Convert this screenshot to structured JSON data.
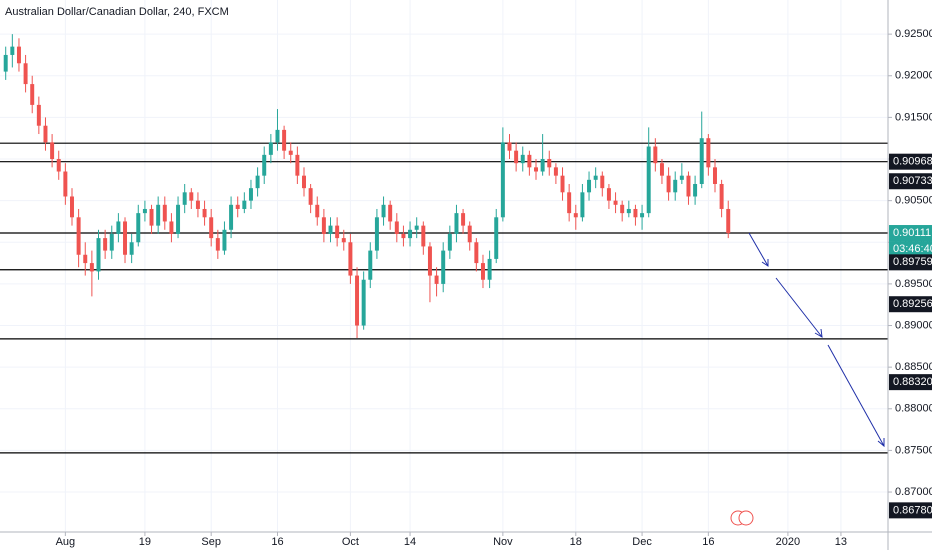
{
  "chart_data": {
    "type": "candlestick",
    "title": "Australian Dollar/Canadian Dollar, 240, FXCM",
    "up_color": "#26a69a",
    "down_color": "#ef5350",
    "xlim": [
      -0.86,
      133.1
    ],
    "xticks": [
      {
        "value": 9,
        "label": "Aug"
      },
      {
        "value": 21,
        "label": "19"
      },
      {
        "value": 31,
        "label": "Sep"
      },
      {
        "value": 41,
        "label": "16"
      },
      {
        "value": 52,
        "label": "Oct"
      },
      {
        "value": 61,
        "label": "14"
      },
      {
        "value": 75,
        "label": "Nov"
      },
      {
        "value": 86,
        "label": "18"
      },
      {
        "value": 96,
        "label": "Dec"
      },
      {
        "value": 106,
        "label": "16"
      },
      {
        "value": 118,
        "label": "2020"
      },
      {
        "value": 126,
        "label": "13"
      }
    ],
    "ylim": [
      0.8652,
      0.9291
    ],
    "yticks": [
      {
        "value": 0.925,
        "label": "0.92500"
      },
      {
        "value": 0.92,
        "label": "0.92000"
      },
      {
        "value": 0.915,
        "label": "0.91500"
      },
      {
        "value": 0.91,
        "label": "0.91000"
      },
      {
        "value": 0.905,
        "label": "0.90500"
      },
      {
        "value": 0.9,
        "label": "0.90000"
      },
      {
        "value": 0.895,
        "label": "0.89500"
      },
      {
        "value": 0.89,
        "label": "0.89000"
      },
      {
        "value": 0.885,
        "label": "0.88500"
      },
      {
        "value": 0.88,
        "label": "0.88000"
      },
      {
        "value": 0.875,
        "label": "0.87500"
      },
      {
        "value": 0.87,
        "label": "0.87000"
      }
    ],
    "grid": true,
    "levels": [
      0.9119,
      0.90968,
      0.90111,
      0.8967,
      0.8884,
      0.8747
    ],
    "price_labels": [
      {
        "value": 0.90968,
        "label": "0.90968"
      },
      {
        "value": 0.90733,
        "label": "0.90733"
      },
      {
        "value": 0.90111,
        "label": "0.90111"
      },
      {
        "value": 0.89759,
        "label": "0.89759"
      },
      {
        "value": 0.89256,
        "label": "0.89256"
      },
      {
        "value": 0.8832,
        "label": "0.88320"
      },
      {
        "value": 0.8678,
        "label": "0.86780"
      }
    ],
    "last_price_color": "#26a69a",
    "countdown": "03:46:40",
    "ohlc": [
      [
        0.9205,
        0.9235,
        0.9195,
        0.9225
      ],
      [
        0.9225,
        0.925,
        0.921,
        0.9235
      ],
      [
        0.9235,
        0.9245,
        0.9205,
        0.9215
      ],
      [
        0.9215,
        0.9225,
        0.918,
        0.919
      ],
      [
        0.919,
        0.92,
        0.9155,
        0.9165
      ],
      [
        0.9165,
        0.9175,
        0.913,
        0.914
      ],
      [
        0.914,
        0.915,
        0.911,
        0.912
      ],
      [
        0.912,
        0.913,
        0.909,
        0.91
      ],
      [
        0.91,
        0.911,
        0.9075,
        0.9085
      ],
      [
        0.9085,
        0.9095,
        0.9045,
        0.9055
      ],
      [
        0.9055,
        0.9065,
        0.902,
        0.903
      ],
      [
        0.903,
        0.904,
        0.897,
        0.8985
      ],
      [
        0.8985,
        0.9,
        0.896,
        0.8975
      ],
      [
        0.8975,
        0.899,
        0.8935,
        0.8965
      ],
      [
        0.8965,
        0.9015,
        0.8955,
        0.9005
      ],
      [
        0.9005,
        0.9015,
        0.898,
        0.899
      ],
      [
        0.899,
        0.902,
        0.898,
        0.901
      ],
      [
        0.901,
        0.9035,
        0.9,
        0.9025
      ],
      [
        0.9025,
        0.903,
        0.8975,
        0.8985
      ],
      [
        0.8985,
        0.901,
        0.8975,
        0.9
      ],
      [
        0.9,
        0.9045,
        0.8995,
        0.9035
      ],
      [
        0.9035,
        0.905,
        0.9025,
        0.904
      ],
      [
        0.904,
        0.9045,
        0.901,
        0.902
      ],
      [
        0.902,
        0.9055,
        0.901,
        0.9045
      ],
      [
        0.9045,
        0.9055,
        0.9015,
        0.9025
      ],
      [
        0.9025,
        0.9035,
        0.9,
        0.901
      ],
      [
        0.901,
        0.9055,
        0.9005,
        0.9045
      ],
      [
        0.9045,
        0.907,
        0.9035,
        0.906
      ],
      [
        0.906,
        0.9065,
        0.904,
        0.905
      ],
      [
        0.905,
        0.906,
        0.903,
        0.904
      ],
      [
        0.904,
        0.905,
        0.902,
        0.903
      ],
      [
        0.903,
        0.904,
        0.8995,
        0.9005
      ],
      [
        0.9005,
        0.9015,
        0.898,
        0.899
      ],
      [
        0.899,
        0.9025,
        0.8985,
        0.9015
      ],
      [
        0.9015,
        0.9055,
        0.9005,
        0.9045
      ],
      [
        0.9045,
        0.9055,
        0.903,
        0.904
      ],
      [
        0.904,
        0.906,
        0.9035,
        0.905
      ],
      [
        0.905,
        0.9075,
        0.904,
        0.9065
      ],
      [
        0.9065,
        0.909,
        0.9055,
        0.908
      ],
      [
        0.908,
        0.9115,
        0.907,
        0.9105
      ],
      [
        0.9105,
        0.913,
        0.9095,
        0.912
      ],
      [
        0.912,
        0.916,
        0.911,
        0.9135
      ],
      [
        0.9135,
        0.914,
        0.91,
        0.911
      ],
      [
        0.911,
        0.912,
        0.9095,
        0.9105
      ],
      [
        0.9105,
        0.9115,
        0.907,
        0.908
      ],
      [
        0.908,
        0.909,
        0.9055,
        0.9065
      ],
      [
        0.9065,
        0.907,
        0.9035,
        0.9045
      ],
      [
        0.9045,
        0.9055,
        0.902,
        0.903
      ],
      [
        0.903,
        0.904,
        0.9,
        0.901
      ],
      [
        0.901,
        0.903,
        0.9,
        0.902
      ],
      [
        0.902,
        0.903,
        0.8995,
        0.9005
      ],
      [
        0.9005,
        0.9015,
        0.899,
        0.9
      ],
      [
        0.9,
        0.901,
        0.895,
        0.896
      ],
      [
        0.896,
        0.897,
        0.8885,
        0.89
      ],
      [
        0.89,
        0.8965,
        0.8895,
        0.8955
      ],
      [
        0.8955,
        0.9,
        0.8945,
        0.899
      ],
      [
        0.899,
        0.904,
        0.898,
        0.903
      ],
      [
        0.903,
        0.9055,
        0.902,
        0.9045
      ],
      [
        0.9045,
        0.905,
        0.9015,
        0.9025
      ],
      [
        0.9025,
        0.9035,
        0.9,
        0.901
      ],
      [
        0.901,
        0.902,
        0.8995,
        0.9005
      ],
      [
        0.9005,
        0.9025,
        0.8995,
        0.9015
      ],
      [
        0.9015,
        0.903,
        0.9005,
        0.902
      ],
      [
        0.902,
        0.9025,
        0.8985,
        0.8995
      ],
      [
        0.8995,
        0.9,
        0.8928,
        0.896
      ],
      [
        0.896,
        0.897,
        0.8935,
        0.895
      ],
      [
        0.895,
        0.9,
        0.894,
        0.899
      ],
      [
        0.899,
        0.902,
        0.898,
        0.901
      ],
      [
        0.901,
        0.9045,
        0.9,
        0.9035
      ],
      [
        0.9035,
        0.904,
        0.901,
        0.902
      ],
      [
        0.902,
        0.9025,
        0.899,
        0.9
      ],
      [
        0.9,
        0.9005,
        0.8965,
        0.8975
      ],
      [
        0.8975,
        0.8985,
        0.8945,
        0.8955
      ],
      [
        0.8955,
        0.899,
        0.8945,
        0.898
      ],
      [
        0.898,
        0.904,
        0.8975,
        0.903
      ],
      [
        0.903,
        0.9138,
        0.9025,
        0.912
      ],
      [
        0.912,
        0.913,
        0.91,
        0.911
      ],
      [
        0.911,
        0.912,
        0.9085,
        0.9095
      ],
      [
        0.9095,
        0.9115,
        0.9085,
        0.9105
      ],
      [
        0.9105,
        0.911,
        0.908,
        0.909
      ],
      [
        0.909,
        0.91,
        0.9075,
        0.9085
      ],
      [
        0.9085,
        0.913,
        0.908,
        0.91
      ],
      [
        0.91,
        0.911,
        0.908,
        0.909
      ],
      [
        0.909,
        0.9095,
        0.907,
        0.908
      ],
      [
        0.908,
        0.909,
        0.905,
        0.906
      ],
      [
        0.906,
        0.907,
        0.9025,
        0.9035
      ],
      [
        0.9035,
        0.9045,
        0.9015,
        0.903
      ],
      [
        0.903,
        0.907,
        0.9025,
        0.906
      ],
      [
        0.906,
        0.9085,
        0.905,
        0.9075
      ],
      [
        0.9075,
        0.909,
        0.9065,
        0.908
      ],
      [
        0.908,
        0.9085,
        0.9055,
        0.9065
      ],
      [
        0.9065,
        0.907,
        0.904,
        0.905
      ],
      [
        0.905,
        0.906,
        0.9035,
        0.9045
      ],
      [
        0.9045,
        0.905,
        0.9025,
        0.9035
      ],
      [
        0.9035,
        0.905,
        0.903,
        0.904
      ],
      [
        0.904,
        0.9045,
        0.902,
        0.903
      ],
      [
        0.903,
        0.9045,
        0.9015,
        0.9035
      ],
      [
        0.9035,
        0.9138,
        0.903,
        0.9115
      ],
      [
        0.9115,
        0.9125,
        0.9085,
        0.9095
      ],
      [
        0.9095,
        0.91,
        0.907,
        0.908
      ],
      [
        0.908,
        0.909,
        0.905,
        0.906
      ],
      [
        0.906,
        0.9085,
        0.905,
        0.9075
      ],
      [
        0.9075,
        0.9095,
        0.907,
        0.908
      ],
      [
        0.908,
        0.9085,
        0.9045,
        0.9055
      ],
      [
        0.9055,
        0.908,
        0.9045,
        0.907
      ],
      [
        0.907,
        0.9157,
        0.9065,
        0.9125
      ],
      [
        0.9125,
        0.913,
        0.908,
        0.909
      ],
      [
        0.909,
        0.91,
        0.906,
        0.907
      ],
      [
        0.907,
        0.9075,
        0.903,
        0.904
      ],
      [
        0.904,
        0.905,
        0.9005,
        0.9011
      ]
    ]
  }
}
